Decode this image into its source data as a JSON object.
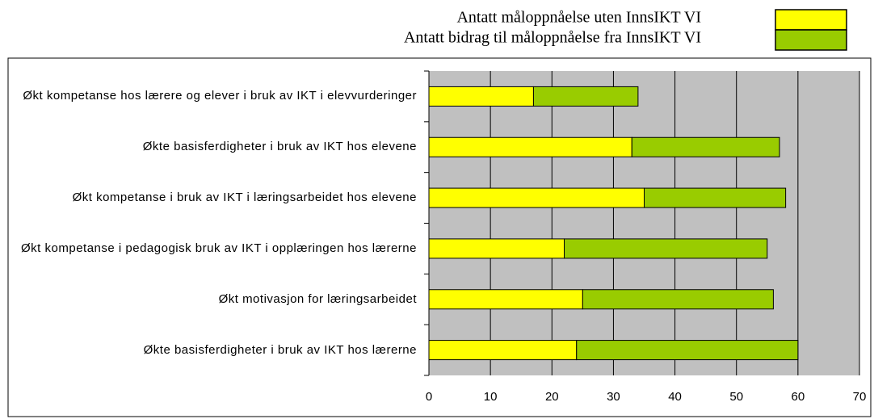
{
  "chart_data": {
    "type": "stacked-barh",
    "categories": [
      "Økt kompetanse hos lærere og elever i bruk av IKT i elevvurderinger",
      "Økte basisferdigheter i bruk av IKT hos elevene",
      "Økt kompetanse i bruk av IKT i læringsarbeidet hos elevene",
      "Økt kompetanse i pedagogisk bruk av IKT i opplæringen hos lærerne",
      "Økt motivasjon for læringsarbeidet",
      "Økte basisferdigheter i bruk av IKT hos lærerne"
    ],
    "series": [
      {
        "name": "Antatt måloppnåelse uten InnsIKT VI",
        "color": "#ffff00",
        "values": [
          17,
          33,
          35,
          22,
          25,
          24
        ]
      },
      {
        "name": "Antatt bidrag til måloppnåelse fra InnsIKT VI",
        "color": "#99cc00",
        "values": [
          17,
          24,
          23,
          33,
          31,
          36
        ]
      }
    ],
    "xlim": [
      0,
      70
    ],
    "xticks": [
      0,
      10,
      20,
      30,
      40,
      50,
      60,
      70
    ],
    "grid": true,
    "plot_background": "#c0c0c0"
  }
}
